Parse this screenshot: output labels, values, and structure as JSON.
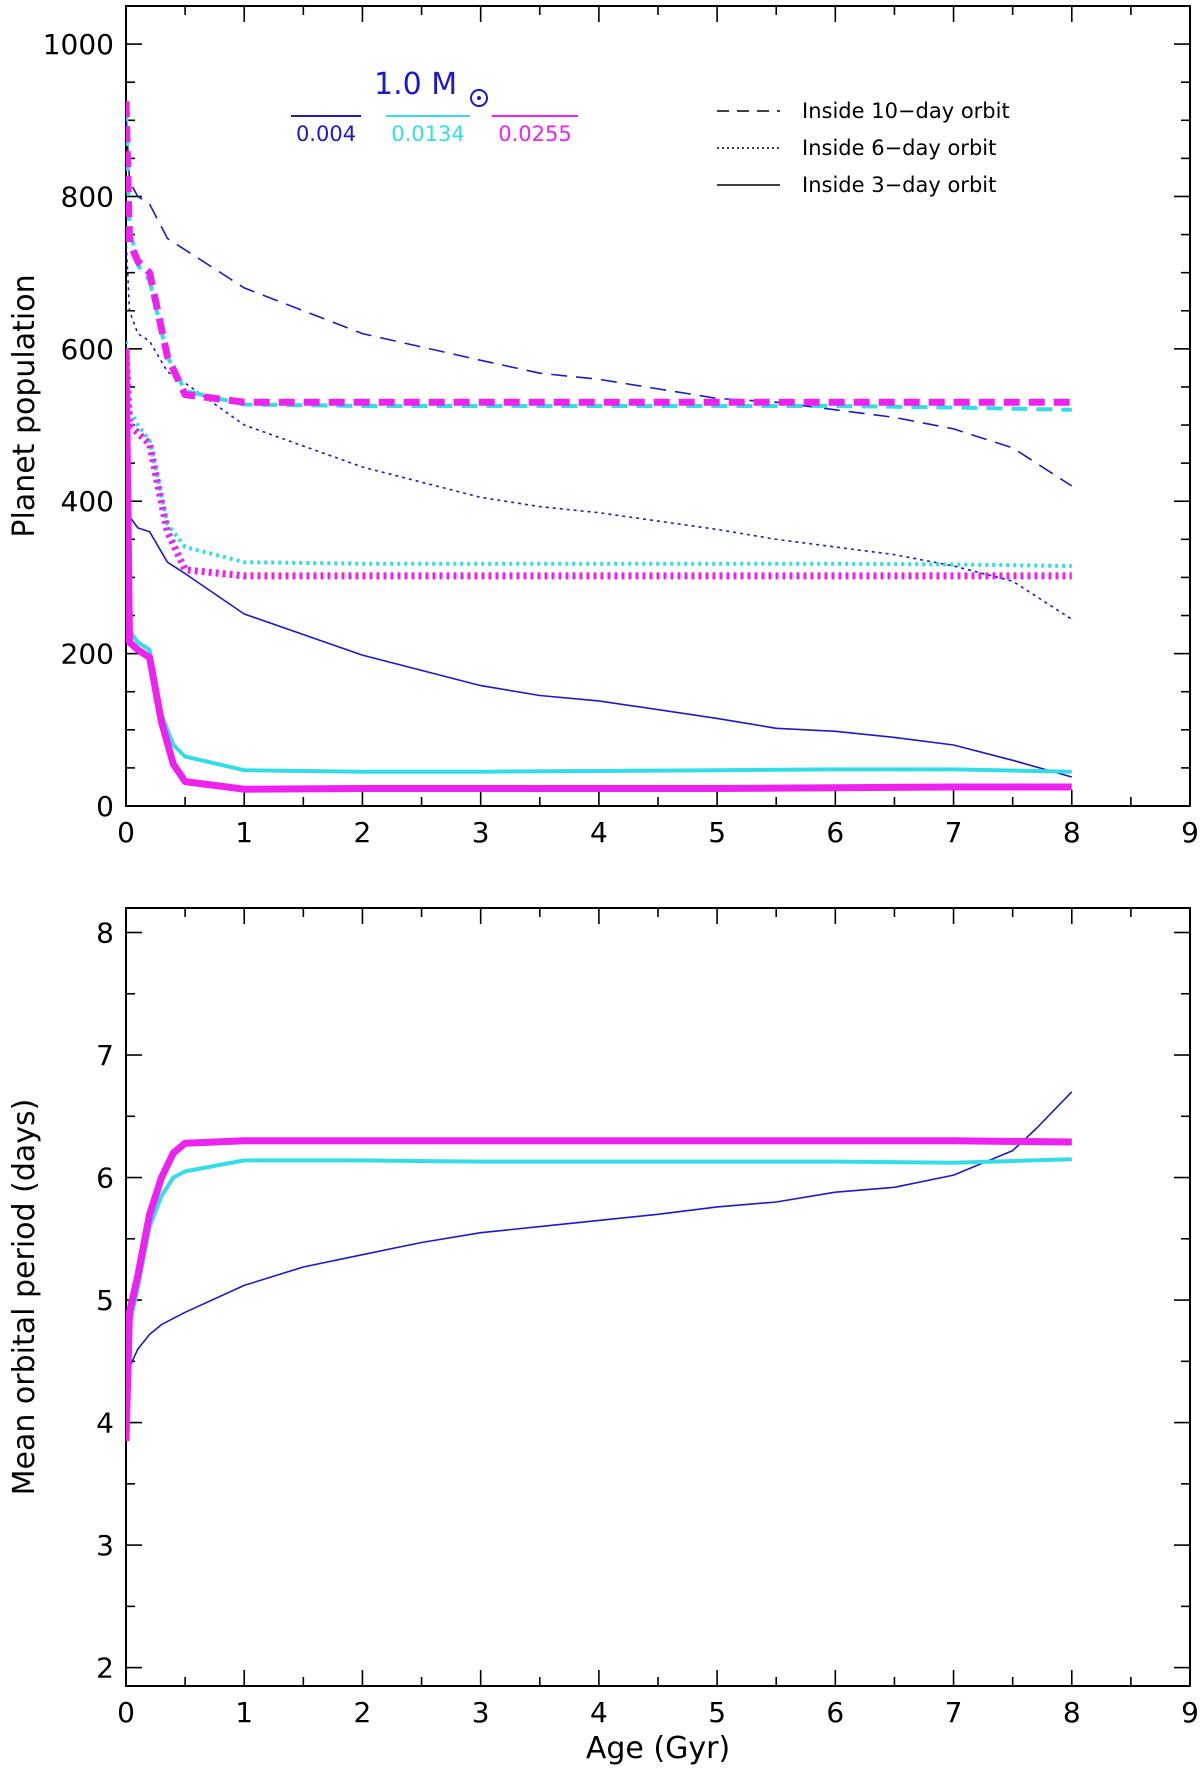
{
  "chart_data": [
    {
      "type": "line",
      "title": "",
      "xlabel": "",
      "ylabel": "Planet population",
      "xlim": [
        0,
        9
      ],
      "ylim": [
        0,
        1050
      ],
      "xticks": [
        "0",
        "1",
        "2",
        "3",
        "4",
        "5",
        "6",
        "7",
        "8",
        "9"
      ],
      "yticks": [
        "0",
        "200",
        "400",
        "600",
        "800",
        "1000"
      ],
      "mass_label": "1.0 M",
      "metallicity_legend": [
        {
          "label": "0.004",
          "color": "#1a1acc"
        },
        {
          "label": "0.0134",
          "color": "#33dde8"
        },
        {
          "label": "0.0255",
          "color": "#ee22ee"
        }
      ],
      "style_legend": [
        {
          "label": "Inside 10−day orbit",
          "style": "dashed"
        },
        {
          "label": "Inside 6−day orbit",
          "style": "dotted"
        },
        {
          "label": "Inside 3−day orbit",
          "style": "solid"
        }
      ],
      "series": [
        {
          "name": "0.004 inside 10-day",
          "metallicity": "0.004",
          "style": "dashed",
          "color": "#1a1acc",
          "width": 1.6,
          "x": [
            0,
            0.03,
            0.1,
            0.2,
            0.35,
            0.5,
            1,
            2,
            3,
            3.5,
            4,
            5,
            5.5,
            6,
            6.5,
            7,
            7.5,
            8
          ],
          "y": [
            910,
            820,
            800,
            790,
            745,
            730,
            680,
            620,
            585,
            568,
            560,
            535,
            530,
            520,
            510,
            495,
            470,
            420
          ]
        },
        {
          "name": "0.004 inside 6-day",
          "metallicity": "0.004",
          "style": "dotted",
          "color": "#1a1acc",
          "width": 1.6,
          "x": [
            0,
            0.03,
            0.1,
            0.2,
            0.35,
            0.5,
            1,
            2,
            3,
            3.5,
            4,
            5,
            5.5,
            6,
            6.5,
            7,
            7.5,
            8
          ],
          "y": [
            745,
            650,
            620,
            610,
            570,
            555,
            500,
            445,
            405,
            393,
            385,
            363,
            350,
            340,
            330,
            315,
            295,
            245
          ]
        },
        {
          "name": "0.004 inside 3-day",
          "metallicity": "0.004",
          "style": "solid",
          "color": "#1a1acc",
          "width": 1.6,
          "x": [
            0,
            0.03,
            0.1,
            0.2,
            0.35,
            0.5,
            1,
            2,
            3,
            3.5,
            4,
            5,
            5.5,
            6,
            6.5,
            7,
            7.5,
            8
          ],
          "y": [
            510,
            380,
            365,
            360,
            320,
            305,
            252,
            198,
            158,
            145,
            138,
            115,
            102,
            98,
            90,
            80,
            60,
            38
          ]
        },
        {
          "name": "0.0134 inside 10-day",
          "metallicity": "0.0134",
          "style": "dashed",
          "color": "#33dde8",
          "width": 4,
          "x": [
            0,
            0.03,
            0.1,
            0.2,
            0.35,
            0.5,
            1,
            2,
            3,
            4,
            5,
            6,
            7,
            8
          ],
          "y": [
            920,
            760,
            710,
            690,
            590,
            545,
            527,
            525,
            525,
            525,
            525,
            525,
            523,
            520
          ]
        },
        {
          "name": "0.0134 inside 6-day",
          "metallicity": "0.0134",
          "style": "dotted",
          "color": "#33dde8",
          "width": 4,
          "x": [
            0,
            0.03,
            0.1,
            0.2,
            0.35,
            0.5,
            1,
            2,
            3,
            4,
            5,
            6,
            7,
            8
          ],
          "y": [
            610,
            520,
            500,
            480,
            370,
            340,
            320,
            318,
            318,
            318,
            318,
            318,
            317,
            315
          ]
        },
        {
          "name": "0.0134 inside 3-day",
          "metallicity": "0.0134",
          "style": "solid",
          "color": "#33dde8",
          "width": 4,
          "x": [
            0,
            0.03,
            0.1,
            0.2,
            0.3,
            0.4,
            0.5,
            1,
            2,
            3,
            4,
            5,
            6,
            7,
            8
          ],
          "y": [
            420,
            230,
            215,
            205,
            120,
            80,
            65,
            47,
            45,
            45,
            46,
            47,
            48,
            48,
            45
          ]
        },
        {
          "name": "0.0255 inside 10-day",
          "metallicity": "0.0255",
          "style": "dashed",
          "color": "#ee22ee",
          "width": 7,
          "x": [
            0,
            0.03,
            0.1,
            0.2,
            0.35,
            0.5,
            1,
            2,
            3,
            4,
            5,
            6,
            7,
            8
          ],
          "y": [
            925,
            740,
            715,
            700,
            590,
            540,
            530,
            530,
            530,
            530,
            530,
            530,
            530,
            530
          ]
        },
        {
          "name": "0.0255 inside 6-day",
          "metallicity": "0.0255",
          "style": "dotted",
          "color": "#ee22ee",
          "width": 7,
          "x": [
            0,
            0.03,
            0.1,
            0.2,
            0.35,
            0.5,
            1,
            2,
            3,
            4,
            5,
            6,
            7,
            8
          ],
          "y": [
            600,
            500,
            490,
            475,
            360,
            310,
            302,
            302,
            302,
            302,
            302,
            302,
            302,
            302
          ]
        },
        {
          "name": "0.0255 inside 3-day",
          "metallicity": "0.0255",
          "style": "solid",
          "color": "#ee22ee",
          "width": 7,
          "x": [
            0,
            0.03,
            0.1,
            0.2,
            0.3,
            0.4,
            0.5,
            1,
            2,
            3,
            4,
            5,
            6,
            7,
            8
          ],
          "y": [
            600,
            215,
            205,
            195,
            110,
            55,
            32,
            22,
            23,
            23,
            23,
            23,
            24,
            25,
            25
          ]
        }
      ]
    },
    {
      "type": "line",
      "title": "",
      "xlabel": "Age (Gyr)",
      "ylabel": "Mean orbital period (days)",
      "xlim": [
        0,
        9
      ],
      "ylim": [
        1.85,
        8.2
      ],
      "xticks": [
        "0",
        "1",
        "2",
        "3",
        "4",
        "5",
        "6",
        "7",
        "8",
        "9"
      ],
      "yticks": [
        "2",
        "3",
        "4",
        "5",
        "6",
        "7",
        "8"
      ],
      "series": [
        {
          "name": "0.004",
          "style": "solid",
          "color": "#1a1acc",
          "width": 1.6,
          "x": [
            0,
            0.03,
            0.1,
            0.2,
            0.3,
            0.5,
            1,
            1.5,
            2,
            2.5,
            3,
            3.5,
            4,
            4.5,
            5,
            5.5,
            6,
            6.5,
            7,
            7.5,
            7.7,
            8
          ],
          "y": [
            4.0,
            4.45,
            4.6,
            4.72,
            4.8,
            4.9,
            5.12,
            5.27,
            5.37,
            5.47,
            5.55,
            5.6,
            5.65,
            5.7,
            5.76,
            5.8,
            5.88,
            5.92,
            6.02,
            6.22,
            6.4,
            6.7
          ]
        },
        {
          "name": "0.0134",
          "style": "solid",
          "color": "#33dde8",
          "width": 4,
          "x": [
            0,
            0.03,
            0.1,
            0.2,
            0.3,
            0.4,
            0.5,
            1,
            2,
            3,
            4,
            5,
            6,
            7,
            8
          ],
          "y": [
            3.85,
            4.8,
            5.1,
            5.6,
            5.85,
            6.0,
            6.05,
            6.14,
            6.14,
            6.13,
            6.13,
            6.13,
            6.13,
            6.12,
            6.15
          ]
        },
        {
          "name": "0.0255",
          "style": "solid",
          "color": "#ee22ee",
          "width": 7,
          "x": [
            0,
            0.03,
            0.1,
            0.2,
            0.3,
            0.4,
            0.5,
            1,
            2,
            3,
            4,
            5,
            6,
            7,
            8
          ],
          "y": [
            3.85,
            4.9,
            5.2,
            5.7,
            6.0,
            6.2,
            6.28,
            6.3,
            6.3,
            6.3,
            6.3,
            6.3,
            6.3,
            6.3,
            6.29
          ]
        }
      ]
    }
  ]
}
